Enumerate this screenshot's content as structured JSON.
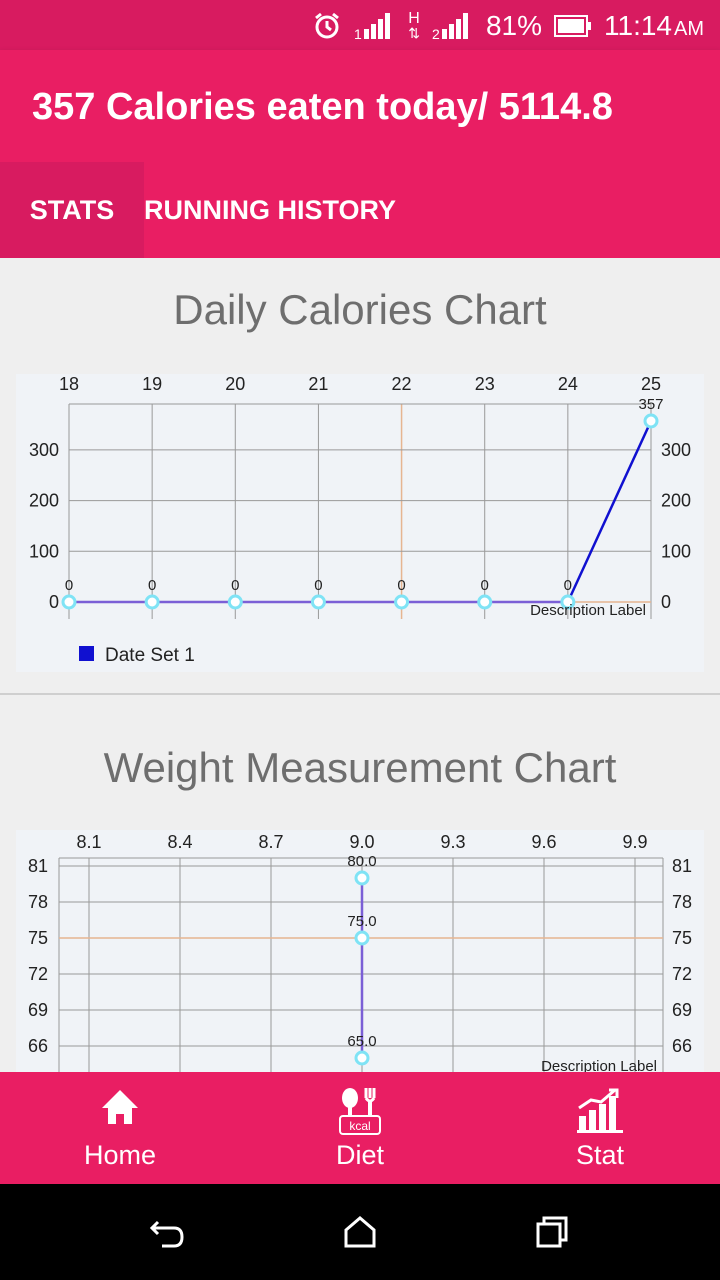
{
  "status_bar": {
    "battery": "81%",
    "time": "11:14",
    "ampm": "AM",
    "network_label": "H"
  },
  "app": {
    "title": "357 Calories eaten today/ 5114.8"
  },
  "tabs": [
    {
      "label": "STATS",
      "active": true
    },
    {
      "label": "RUNNING HISTORY",
      "active": false
    }
  ],
  "charts": {
    "calories_title": "Daily Calories Chart",
    "weight_title": "Weight Measurement Chart"
  },
  "chart_data": [
    {
      "type": "line",
      "title": "Daily Calories Chart",
      "x": [
        18,
        19,
        20,
        21,
        22,
        23,
        24,
        25
      ],
      "series": [
        {
          "name": "Date Set 1",
          "values": [
            0,
            0,
            0,
            0,
            0,
            0,
            0,
            357
          ]
        }
      ],
      "y_ticks": [
        0,
        100,
        200,
        300
      ],
      "ylim": [
        0,
        357
      ],
      "xlim": [
        18,
        25
      ],
      "x_highlight": 22,
      "description": "Description Label",
      "legend": "bottom-left",
      "grid": true
    },
    {
      "type": "scatter",
      "title": "Weight Measurement Chart",
      "x_ticks": [
        "8.1",
        "8.4",
        "8.7",
        "9.0",
        "9.3",
        "9.6",
        "9.9"
      ],
      "points": [
        {
          "x": 9.0,
          "y": 80.0,
          "label": "80.0"
        },
        {
          "x": 9.0,
          "y": 75.0,
          "label": "75.0"
        },
        {
          "x": 9.0,
          "y": 65.0,
          "label": "65.0"
        }
      ],
      "y_ticks": [
        66,
        69,
        72,
        75,
        78,
        81
      ],
      "y_highlight": 75,
      "description": "Description Label",
      "grid": true
    }
  ],
  "bottom_nav": [
    {
      "label": "Home",
      "icon": "home-icon"
    },
    {
      "label": "Diet",
      "icon": "diet-kcal-icon",
      "icon_text": "kcal"
    },
    {
      "label": "Stat",
      "icon": "stat-chart-icon"
    }
  ],
  "colors": {
    "primary": "#e91e63",
    "primary_dark": "#d81b60",
    "line": "#1010d0",
    "line_light": "#7b5fd6",
    "point": "#7fe3f5",
    "highlight": "#e6b591"
  }
}
